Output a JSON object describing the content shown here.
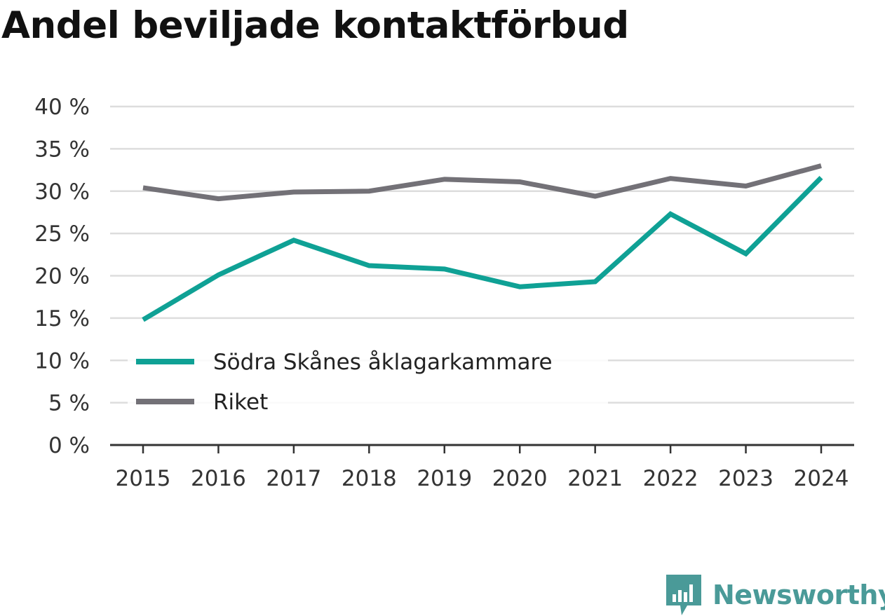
{
  "title": "Andel beviljade kontaktförbud",
  "brand": {
    "name": "Newsworthy",
    "icon": "newsworthy-logo-icon",
    "color": "#4a9a98"
  },
  "chart_data": {
    "type": "line",
    "title": "Andel beviljade kontaktförbud",
    "x": [
      "2015",
      "2016",
      "2017",
      "2018",
      "2019",
      "2020",
      "2021",
      "2022",
      "2023",
      "2024"
    ],
    "ylim": [
      0,
      40
    ],
    "yticks": [
      0,
      5,
      10,
      15,
      20,
      25,
      30,
      35,
      40
    ],
    "ytick_labels": [
      "0 %",
      "5 %",
      "10 %",
      "15 %",
      "20 %",
      "25 %",
      "30 %",
      "35 %",
      "40 %"
    ],
    "grid": true,
    "legend_position": "bottom-left",
    "series": [
      {
        "name": "Södra Skånes åklagarkammare",
        "color": "#0fa195",
        "values": [
          14.8,
          20.1,
          24.2,
          21.2,
          20.8,
          18.7,
          19.3,
          27.3,
          22.6,
          31.6
        ]
      },
      {
        "name": "Riket",
        "color": "#737177",
        "values": [
          30.4,
          29.1,
          29.9,
          30.0,
          31.4,
          31.1,
          29.4,
          31.5,
          30.6,
          33.0
        ]
      }
    ]
  }
}
